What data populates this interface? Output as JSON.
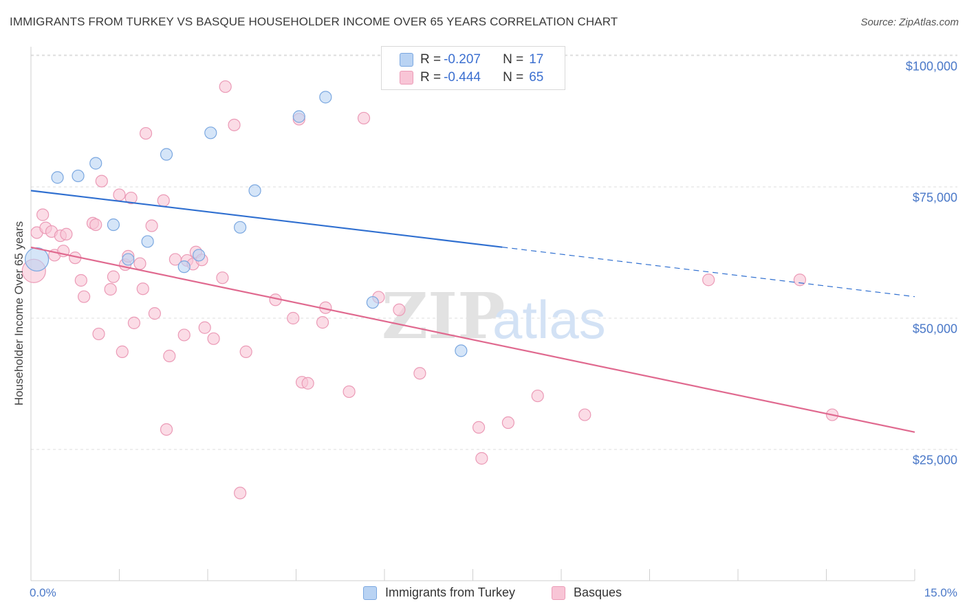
{
  "title": "IMMIGRANTS FROM TURKEY VS BASQUE HOUSEHOLDER INCOME OVER 65 YEARS CORRELATION CHART",
  "source": "Source: ZipAtlas.com",
  "watermark": {
    "zip": "ZIP",
    "atlas": "atlas"
  },
  "legend": {
    "rows": [
      {
        "r_label": "R = ",
        "r_value": "-0.207",
        "n_label": "N = ",
        "n_value": "17"
      },
      {
        "r_label": "R = ",
        "r_value": "-0.444",
        "n_label": "N = ",
        "n_value": "65"
      }
    ]
  },
  "colors": {
    "turkey_fill": "#b9d3f3",
    "turkey_stroke": "#7aa7e0",
    "turkey_line": "#2f6fd0",
    "basque_fill": "#f8c5d6",
    "basque_stroke": "#eb9ab6",
    "basque_line": "#e0698f",
    "grid": "#dcdcdc",
    "axis_text": "#4a78c8"
  },
  "chart_data": {
    "type": "scatter",
    "xlabel": "",
    "ylabel": "Householder Income Over 65 years",
    "xlim": [
      0,
      15
    ],
    "ylim": [
      5000,
      105000
    ],
    "x_tick_labels": [
      "0.0%",
      "15.0%"
    ],
    "y_ticks": [
      25000,
      50000,
      75000,
      100000
    ],
    "y_tick_labels": [
      "$25,000",
      "$50,000",
      "$75,000",
      "$100,000"
    ],
    "grid": true,
    "legend_placement": "top-center",
    "series": [
      {
        "name": "Immigrants from Turkey",
        "r": -0.207,
        "n": 17,
        "trend": {
          "x0": 0,
          "y0": 74300,
          "x1": 15,
          "y1": 54100,
          "solid_until_x": 8.0
        },
        "points": [
          [
            0.1,
            61200,
            "large"
          ],
          [
            0.45,
            76800
          ],
          [
            0.8,
            77100
          ],
          [
            1.1,
            79500
          ],
          [
            1.4,
            67800
          ],
          [
            1.65,
            61200
          ],
          [
            1.98,
            64600
          ],
          [
            2.3,
            81200
          ],
          [
            2.6,
            59800
          ],
          [
            2.85,
            62000
          ],
          [
            3.05,
            85300
          ],
          [
            3.55,
            67300
          ],
          [
            3.8,
            74300
          ],
          [
            4.55,
            88400
          ],
          [
            5.0,
            92100
          ],
          [
            5.8,
            53000
          ],
          [
            7.3,
            43800
          ]
        ]
      },
      {
        "name": "Basques",
        "r": -0.444,
        "n": 65,
        "trend": {
          "x0": 0,
          "y0": 63500,
          "x1": 15,
          "y1": 28300
        },
        "points": [
          [
            0.05,
            59000,
            "large"
          ],
          [
            0.1,
            66300
          ],
          [
            0.2,
            69700
          ],
          [
            0.25,
            67200
          ],
          [
            0.35,
            66500
          ],
          [
            0.4,
            62000
          ],
          [
            0.5,
            65700
          ],
          [
            0.55,
            62800
          ],
          [
            0.6,
            66000
          ],
          [
            0.75,
            61500
          ],
          [
            0.85,
            57200
          ],
          [
            0.9,
            54100
          ],
          [
            1.05,
            68100
          ],
          [
            1.1,
            67800
          ],
          [
            1.15,
            47000
          ],
          [
            1.2,
            76100
          ],
          [
            1.35,
            55500
          ],
          [
            1.4,
            57900
          ],
          [
            1.5,
            73500
          ],
          [
            1.55,
            43600
          ],
          [
            1.6,
            60200
          ],
          [
            1.65,
            61800
          ],
          [
            1.7,
            72900
          ],
          [
            1.75,
            49100
          ],
          [
            1.85,
            60400
          ],
          [
            1.9,
            55600
          ],
          [
            1.95,
            85200
          ],
          [
            2.05,
            67600
          ],
          [
            2.1,
            50900
          ],
          [
            2.25,
            72400
          ],
          [
            2.3,
            28800
          ],
          [
            2.35,
            42800
          ],
          [
            2.45,
            61200
          ],
          [
            2.6,
            46800
          ],
          [
            2.65,
            61000
          ],
          [
            2.75,
            60300
          ],
          [
            2.8,
            62600
          ],
          [
            2.9,
            61100
          ],
          [
            2.95,
            48200
          ],
          [
            3.1,
            46100
          ],
          [
            3.25,
            57700
          ],
          [
            3.3,
            94100
          ],
          [
            3.45,
            86800
          ],
          [
            3.55,
            16700
          ],
          [
            3.65,
            43600
          ],
          [
            4.15,
            53500
          ],
          [
            4.45,
            50000
          ],
          [
            4.55,
            87900
          ],
          [
            4.6,
            37800
          ],
          [
            4.7,
            37600
          ],
          [
            4.95,
            49200
          ],
          [
            5.0,
            52000
          ],
          [
            5.4,
            36000
          ],
          [
            5.65,
            88100
          ],
          [
            5.9,
            54000
          ],
          [
            6.25,
            51600
          ],
          [
            6.6,
            39500
          ],
          [
            7.6,
            29200
          ],
          [
            7.65,
            23300
          ],
          [
            8.1,
            30100
          ],
          [
            8.6,
            35200
          ],
          [
            9.4,
            31600
          ],
          [
            11.5,
            57300
          ],
          [
            13.05,
            57300
          ],
          [
            13.6,
            31600
          ]
        ]
      }
    ]
  }
}
